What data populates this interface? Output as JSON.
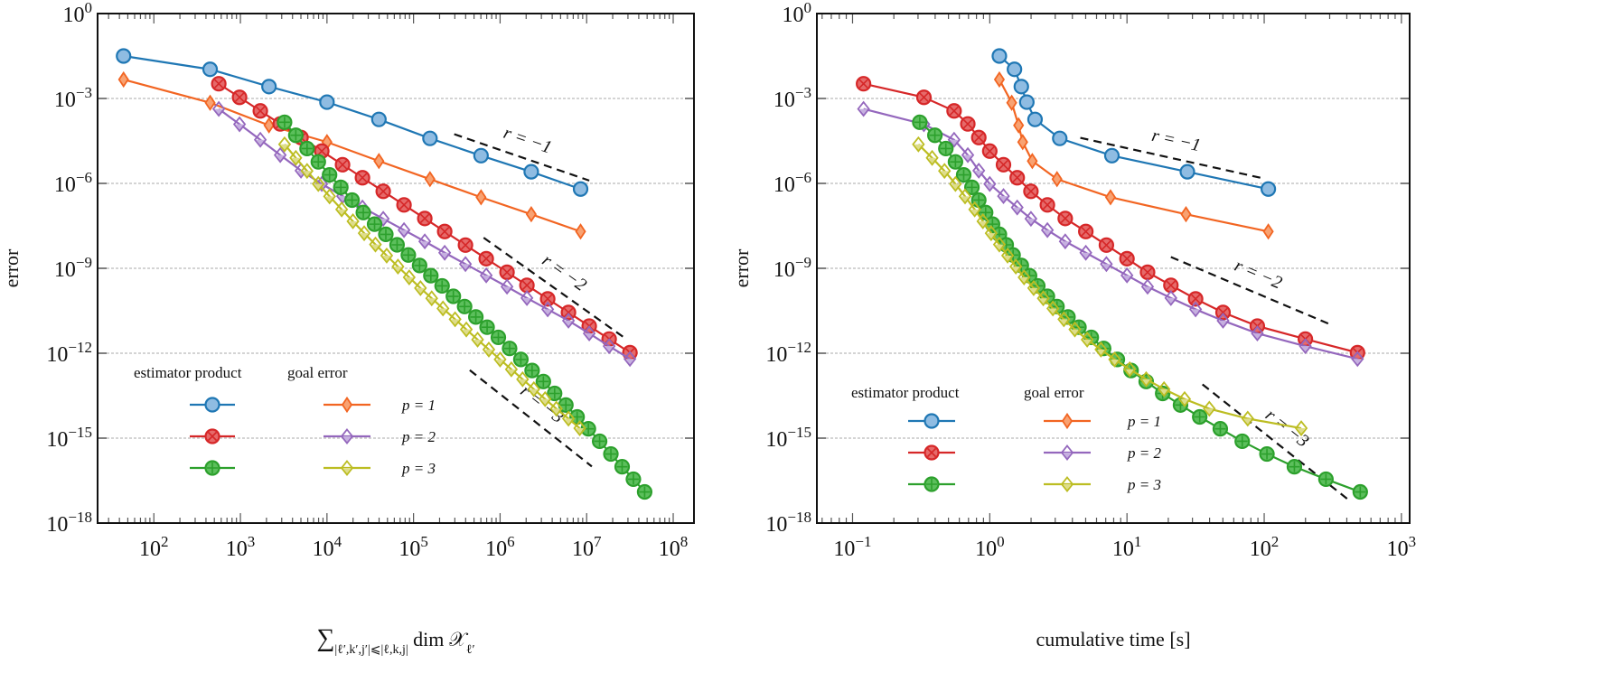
{
  "chart_data": [
    {
      "type": "line",
      "xscale": "log",
      "yscale": "log",
      "xlim_log10": [
        1.35,
        8.24
      ],
      "ylim": [
        "1e-18",
        "1e0"
      ],
      "grid": "horizontal dotted at y tick decades",
      "ylabel": "error",
      "xlabel": {
        "sum": "∑",
        "sub": "|ℓ′,k′,j′|⩽|ℓ,k,j|",
        "text": " dim 𝒳",
        "sub2": "ℓ′"
      },
      "xticks": [
        {
          "base": "10",
          "exp": "2"
        },
        {
          "base": "10",
          "exp": "3"
        },
        {
          "base": "10",
          "exp": "4"
        },
        {
          "base": "10",
          "exp": "5"
        },
        {
          "base": "10",
          "exp": "6"
        },
        {
          "base": "10",
          "exp": "7"
        },
        {
          "base": "10",
          "exp": "8"
        }
      ],
      "yticks": [
        {
          "base": "10",
          "exp": "0"
        },
        {
          "base": "10",
          "exp": "−3"
        },
        {
          "base": "10",
          "exp": "−6"
        },
        {
          "base": "10",
          "exp": "−9"
        },
        {
          "base": "10",
          "exp": "−12"
        },
        {
          "base": "10",
          "exp": "−15"
        },
        {
          "base": "10",
          "exp": "−18"
        }
      ],
      "legend": {
        "placement": "lower-left",
        "header_estimator": "estimator product",
        "header_goal": "goal error",
        "labels": [
          "p = 1",
          "p = 2",
          "p = 3"
        ]
      },
      "series": [
        {
          "key": "est1",
          "color": "#1f77b4",
          "marker": "circle",
          "log10_x": [
            1.65,
            2.65,
            3.33,
            4.0,
            4.6,
            5.19,
            5.78,
            6.36,
            6.93
          ],
          "log10_y": [
            -1.5,
            -1.97,
            -2.58,
            -3.13,
            -3.74,
            -4.41,
            -5.02,
            -5.59,
            -6.2
          ]
        },
        {
          "key": "goal1",
          "color": "#f26522",
          "marker": "diamond-filled",
          "log10_x": [
            1.65,
            2.65,
            3.33,
            4.0,
            4.6,
            5.19,
            5.78,
            6.36,
            6.93
          ],
          "log10_y": [
            -2.33,
            -3.15,
            -3.95,
            -4.54,
            -5.21,
            -5.85,
            -6.49,
            -7.09,
            -7.7
          ]
        },
        {
          "key": "est2",
          "color": "#d62728",
          "marker": "circle-x",
          "log10_x": [
            2.75,
            2.99,
            3.23,
            3.46,
            3.7,
            3.94,
            4.18,
            4.41,
            4.65,
            4.89,
            5.13,
            5.36,
            5.6,
            5.84,
            6.08,
            6.31,
            6.55,
            6.79,
            7.03,
            7.26,
            7.5
          ],
          "log10_y": [
            -2.48,
            -2.96,
            -3.44,
            -3.9,
            -4.38,
            -4.86,
            -5.34,
            -5.8,
            -6.28,
            -6.76,
            -7.24,
            -7.7,
            -8.18,
            -8.66,
            -9.14,
            -9.6,
            -10.08,
            -10.56,
            -11.04,
            -11.5,
            -11.98
          ]
        },
        {
          "key": "goal2",
          "color": "#9467bd",
          "marker": "diamond-open",
          "log10_x": [
            2.75,
            2.99,
            3.23,
            3.46,
            3.7,
            3.94,
            4.18,
            4.41,
            4.65,
            4.89,
            5.13,
            5.36,
            5.6,
            5.84,
            6.08,
            6.31,
            6.55,
            6.79,
            7.03,
            7.26,
            7.5
          ],
          "log10_y": [
            -3.37,
            -3.91,
            -4.46,
            -5.0,
            -5.55,
            -6.02,
            -6.45,
            -6.85,
            -7.25,
            -7.65,
            -8.05,
            -8.45,
            -8.85,
            -9.25,
            -9.65,
            -10.05,
            -10.45,
            -10.85,
            -11.3,
            -11.75,
            -12.2
          ]
        },
        {
          "key": "est3",
          "color": "#2ca02c",
          "marker": "circle-plus",
          "log10_x": [
            3.51,
            3.64,
            3.77,
            3.9,
            4.03,
            4.16,
            4.29,
            4.42,
            4.55,
            4.68,
            4.81,
            4.94,
            5.07,
            5.2,
            5.33,
            5.46,
            5.59,
            5.72,
            5.85,
            5.98,
            6.11,
            6.24,
            6.37,
            6.5,
            6.63,
            6.76,
            6.89,
            7.02,
            7.15,
            7.28,
            7.41,
            7.54,
            7.67
          ],
          "log10_y": [
            -3.84,
            -4.3,
            -4.77,
            -5.24,
            -5.7,
            -6.14,
            -6.59,
            -7.03,
            -7.44,
            -7.8,
            -8.17,
            -8.53,
            -8.9,
            -9.26,
            -9.62,
            -9.99,
            -10.35,
            -10.72,
            -11.08,
            -11.44,
            -11.83,
            -12.22,
            -12.61,
            -13.0,
            -13.42,
            -13.83,
            -14.25,
            -14.67,
            -15.11,
            -15.56,
            -16.01,
            -16.45,
            -16.9
          ]
        },
        {
          "key": "goal3",
          "color": "#bcbd22",
          "marker": "diamond-open",
          "log10_x": [
            3.51,
            3.64,
            3.77,
            3.9,
            4.03,
            4.17,
            4.3,
            4.43,
            4.56,
            4.69,
            4.82,
            4.95,
            5.08,
            5.21,
            5.34,
            5.48,
            5.61,
            5.74,
            5.87,
            6.0,
            6.13,
            6.26,
            6.39,
            6.52,
            6.65,
            6.79,
            6.92
          ],
          "log10_y": [
            -4.62,
            -5.1,
            -5.56,
            -6.02,
            -6.46,
            -6.92,
            -7.34,
            -7.76,
            -8.16,
            -8.55,
            -8.94,
            -9.32,
            -9.7,
            -10.06,
            -10.42,
            -10.8,
            -11.16,
            -11.52,
            -11.87,
            -12.22,
            -12.57,
            -12.92,
            -13.27,
            -13.62,
            -13.96,
            -14.31,
            -14.65
          ]
        }
      ],
      "reference_lines": [
        {
          "label": "r = −1",
          "log10_x": [
            5.47,
            7.03
          ],
          "log10_y": [
            -4.26,
            -5.9
          ]
        },
        {
          "label": "r = −2",
          "log10_x": [
            5.81,
            7.43
          ],
          "log10_y": [
            -7.92,
            -11.44
          ]
        },
        {
          "label": "r = −3",
          "log10_x": [
            5.65,
            7.06
          ],
          "log10_y": [
            -12.6,
            -16.0
          ]
        }
      ]
    },
    {
      "type": "line",
      "xscale": "log",
      "yscale": "log",
      "xlim_log10": [
        -1.26,
        3.06
      ],
      "ylim": [
        "1e-18",
        "1e0"
      ],
      "grid": "horizontal dotted at y tick decades",
      "ylabel": "error",
      "xlabel": "cumulative time [s]",
      "xticks": [
        {
          "base": "10",
          "exp": "−1"
        },
        {
          "base": "10",
          "exp": "0"
        },
        {
          "base": "10",
          "exp": "1"
        },
        {
          "base": "10",
          "exp": "2"
        },
        {
          "base": "10",
          "exp": "3"
        }
      ],
      "yticks": [
        {
          "base": "10",
          "exp": "0"
        },
        {
          "base": "10",
          "exp": "−3"
        },
        {
          "base": "10",
          "exp": "−6"
        },
        {
          "base": "10",
          "exp": "−9"
        },
        {
          "base": "10",
          "exp": "−12"
        },
        {
          "base": "10",
          "exp": "−15"
        },
        {
          "base": "10",
          "exp": "−18"
        }
      ],
      "legend": {
        "placement": "lower-left",
        "header_estimator": "estimator product",
        "header_goal": "goal error",
        "labels": [
          "p = 1",
          "p = 2",
          "p = 3"
        ]
      },
      "series": [
        {
          "key": "est1",
          "color": "#1f77b4",
          "marker": "circle",
          "log10_x": [
            0.07,
            0.18,
            0.23,
            0.27,
            0.33,
            0.51,
            0.89,
            1.44,
            2.03
          ],
          "log10_y": [
            -1.5,
            -1.97,
            -2.58,
            -3.13,
            -3.74,
            -4.41,
            -5.02,
            -5.59,
            -6.2
          ]
        },
        {
          "key": "goal1",
          "color": "#f26522",
          "marker": "diamond-filled",
          "log10_x": [
            0.07,
            0.16,
            0.21,
            0.24,
            0.31,
            0.49,
            0.88,
            1.43,
            2.03
          ],
          "log10_y": [
            -2.33,
            -3.15,
            -3.95,
            -4.54,
            -5.21,
            -5.85,
            -6.49,
            -7.09,
            -7.7
          ]
        },
        {
          "key": "est2",
          "color": "#d62728",
          "marker": "circle-x",
          "log10_x": [
            -0.92,
            -0.48,
            -0.26,
            -0.16,
            -0.08,
            0.0,
            0.1,
            0.2,
            0.3,
            0.42,
            0.55,
            0.7,
            0.85,
            1.0,
            1.15,
            1.32,
            1.5,
            1.7,
            1.95,
            2.3,
            2.68
          ],
          "log10_y": [
            -2.48,
            -2.96,
            -3.44,
            -3.9,
            -4.38,
            -4.86,
            -5.34,
            -5.8,
            -6.28,
            -6.76,
            -7.24,
            -7.7,
            -8.18,
            -8.66,
            -9.14,
            -9.6,
            -10.08,
            -10.56,
            -11.04,
            -11.5,
            -11.98
          ]
        },
        {
          "key": "goal2",
          "color": "#9467bd",
          "marker": "diamond-open",
          "log10_x": [
            -0.92,
            -0.48,
            -0.26,
            -0.16,
            -0.08,
            0.0,
            0.1,
            0.2,
            0.3,
            0.42,
            0.55,
            0.7,
            0.85,
            1.0,
            1.15,
            1.32,
            1.5,
            1.7,
            1.95,
            2.3,
            2.68
          ],
          "log10_y": [
            -3.37,
            -3.91,
            -4.46,
            -5.0,
            -5.55,
            -6.02,
            -6.45,
            -6.85,
            -7.25,
            -7.65,
            -8.05,
            -8.45,
            -8.85,
            -9.25,
            -9.65,
            -10.05,
            -10.45,
            -10.85,
            -11.3,
            -11.75,
            -12.2
          ]
        },
        {
          "key": "est3",
          "color": "#2ca02c",
          "marker": "circle-plus",
          "log10_x": [
            -0.51,
            -0.4,
            -0.32,
            -0.25,
            -0.19,
            -0.13,
            -0.08,
            -0.03,
            0.02,
            0.07,
            0.12,
            0.17,
            0.23,
            0.29,
            0.35,
            0.42,
            0.49,
            0.57,
            0.65,
            0.74,
            0.83,
            0.93,
            1.03,
            1.14,
            1.26,
            1.39,
            1.53,
            1.68,
            1.84,
            2.02,
            2.22,
            2.45,
            2.7
          ],
          "log10_y": [
            -3.84,
            -4.3,
            -4.77,
            -5.24,
            -5.7,
            -6.14,
            -6.59,
            -7.03,
            -7.44,
            -7.8,
            -8.17,
            -8.53,
            -8.9,
            -9.26,
            -9.62,
            -9.99,
            -10.35,
            -10.72,
            -11.08,
            -11.44,
            -11.83,
            -12.22,
            -12.61,
            -13.0,
            -13.42,
            -13.83,
            -14.25,
            -14.67,
            -15.11,
            -15.56,
            -16.01,
            -16.45,
            -16.9
          ]
        },
        {
          "key": "goal3",
          "color": "#bcbd22",
          "marker": "diamond-open",
          "log10_x": [
            -0.52,
            -0.42,
            -0.33,
            -0.25,
            -0.18,
            -0.11,
            -0.05,
            0.01,
            0.07,
            0.13,
            0.19,
            0.25,
            0.32,
            0.39,
            0.46,
            0.54,
            0.62,
            0.71,
            0.81,
            0.91,
            1.02,
            1.14,
            1.27,
            1.42,
            1.6,
            1.88,
            2.27
          ],
          "log10_y": [
            -4.62,
            -5.1,
            -5.56,
            -6.02,
            -6.46,
            -6.92,
            -7.34,
            -7.76,
            -8.16,
            -8.55,
            -8.94,
            -9.32,
            -9.7,
            -10.06,
            -10.42,
            -10.8,
            -11.16,
            -11.52,
            -11.87,
            -12.22,
            -12.57,
            -12.92,
            -13.27,
            -13.62,
            -13.96,
            -14.31,
            -14.65
          ]
        }
      ],
      "reference_lines": [
        {
          "label": "r = −1",
          "log10_x": [
            0.66,
            2.0
          ],
          "log10_y": [
            -4.39,
            -5.83
          ]
        },
        {
          "label": "r = −2",
          "log10_x": [
            1.32,
            2.49
          ],
          "log10_y": [
            -8.6,
            -11.0
          ]
        },
        {
          "label": "r = −3",
          "log10_x": [
            1.55,
            2.62
          ],
          "log10_y": [
            -13.1,
            -17.2
          ]
        }
      ]
    }
  ]
}
